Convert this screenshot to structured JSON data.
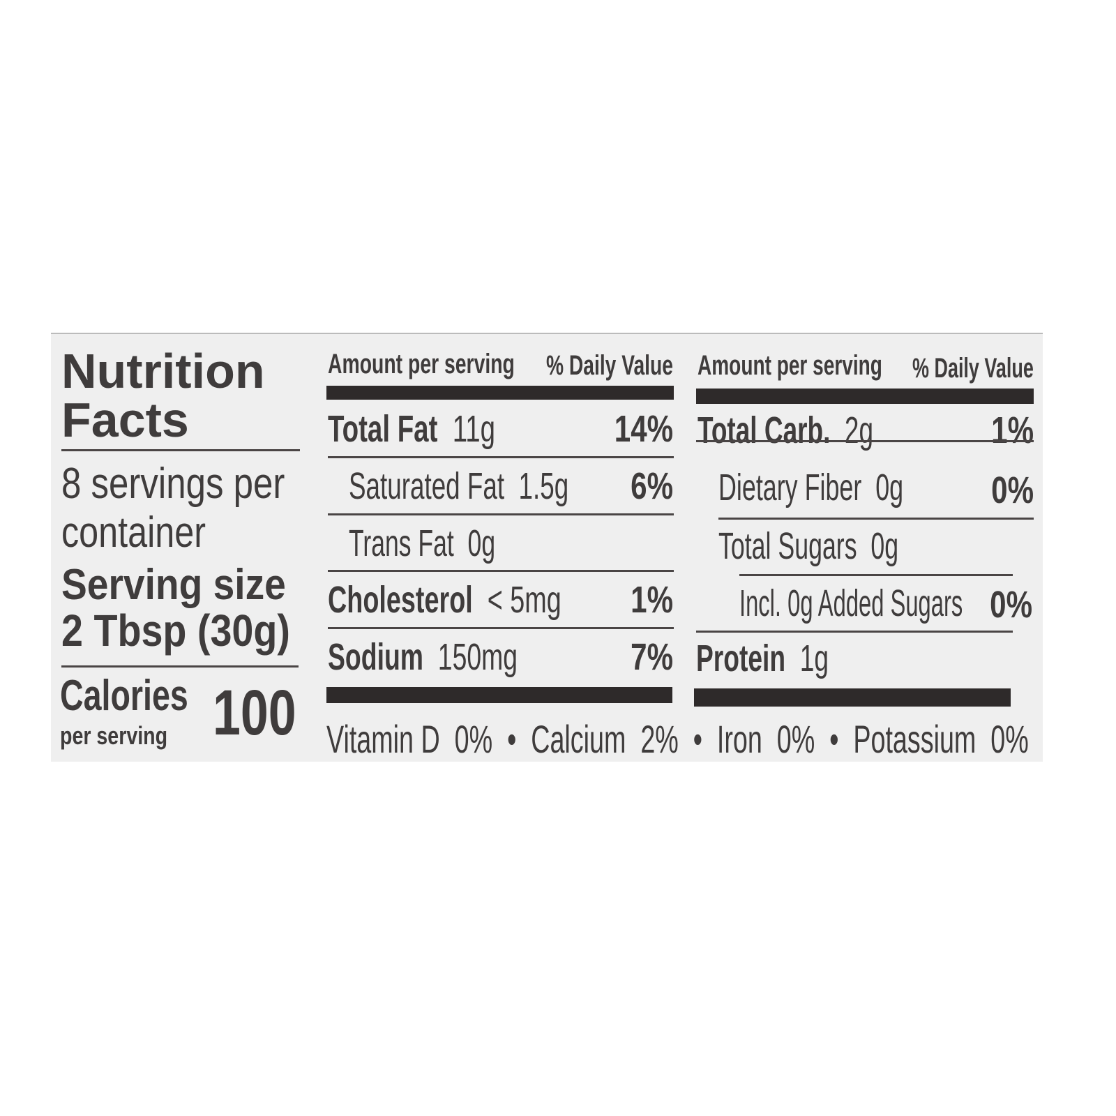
{
  "title_line1": "Nutrition",
  "title_line2": "Facts",
  "servings_line1": "8 servings per",
  "servings_line2": "container",
  "serving_size_label": "Serving size",
  "serving_size_value": "2 Tbsp (30g)",
  "calories_label": "Calories",
  "calories_sub": "per serving",
  "calories_value": "100",
  "left_table": {
    "header_amount": "Amount per serving",
    "header_dv": "% Daily Value",
    "rows": [
      {
        "name": "Total Fat",
        "amount": "11g",
        "dv": "14%"
      },
      {
        "name": "Saturated Fat",
        "amount": "1.5g",
        "dv": "6%"
      },
      {
        "name": "Trans Fat",
        "amount": "0g",
        "dv": ""
      },
      {
        "name": "Cholesterol",
        "amount": "< 5mg",
        "dv": "1%"
      },
      {
        "name": "Sodium",
        "amount": "150mg",
        "dv": "7%"
      }
    ]
  },
  "right_table": {
    "header_amount": "Amount per serving",
    "header_dv": "% Daily Value",
    "rows": [
      {
        "name": "Total Carb.",
        "amount": "2g",
        "dv": "1%"
      },
      {
        "name": "Dietary Fiber",
        "amount": "0g",
        "dv": "0%"
      },
      {
        "name": "Total Sugars",
        "amount": "0g",
        "dv": ""
      },
      {
        "name": "Incl. 0g Added Sugars",
        "amount": "",
        "dv": "0%"
      },
      {
        "name": "Protein",
        "amount": "1g",
        "dv": ""
      }
    ]
  },
  "micronutrients": "Vitamin D  0%  •  Calcium  2%  •  Iron  0%  •  Potassium  0%"
}
